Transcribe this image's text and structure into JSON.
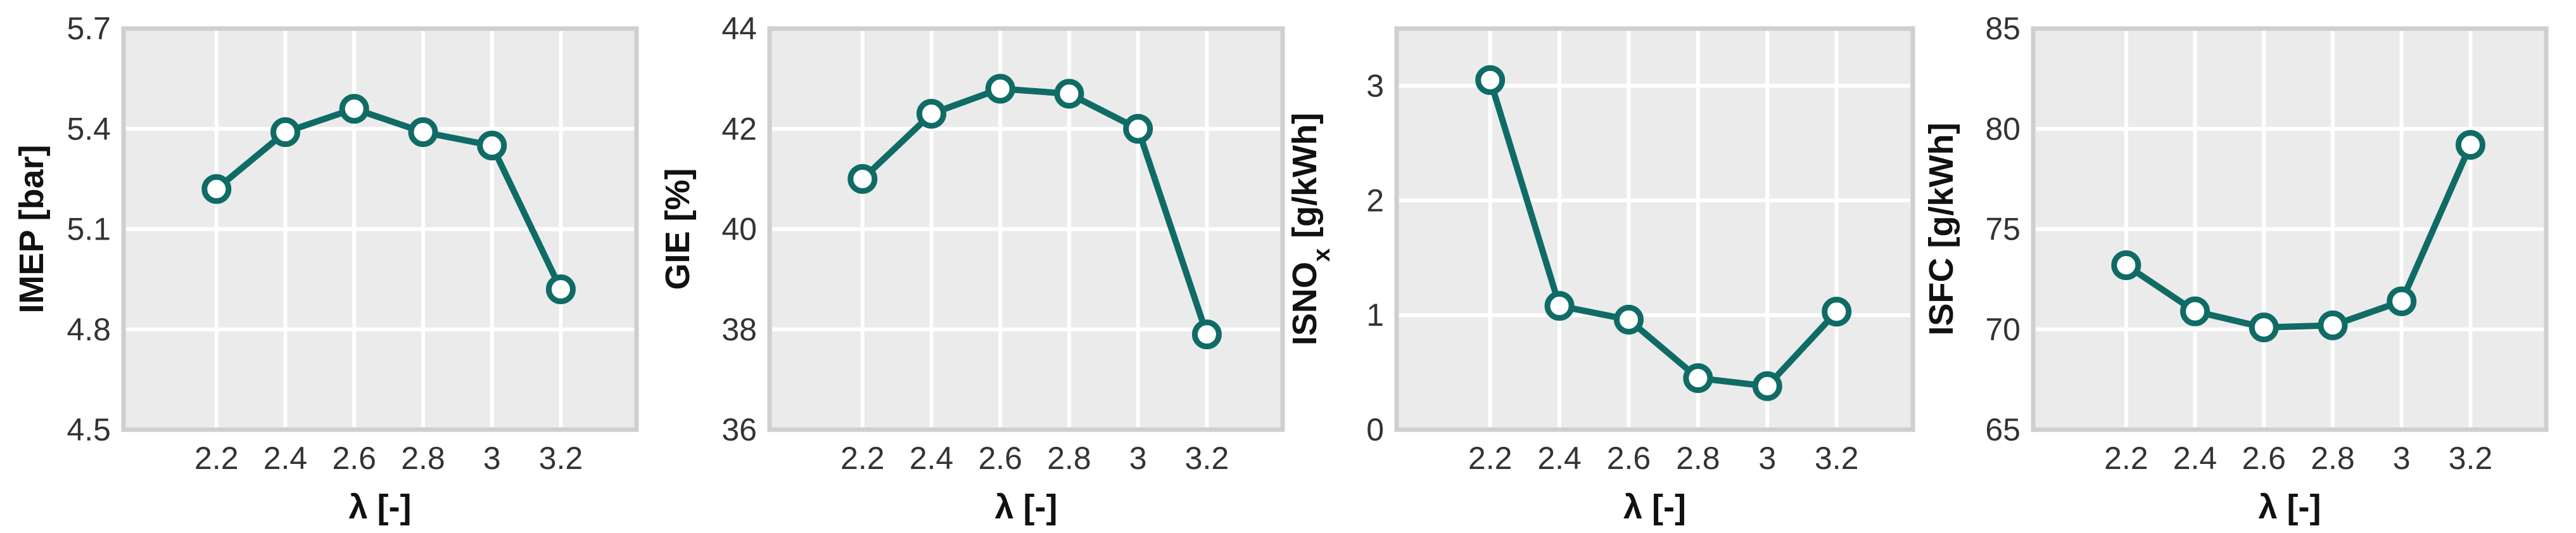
{
  "figure": {
    "background": "#ffffff",
    "panel_background": "#ebebeb",
    "grid_color": "#ffffff",
    "series_color": "#0f6b66"
  },
  "chart_data": [
    {
      "type": "line",
      "xlabel": "λ [-]",
      "ylabel": "IMEP [bar]",
      "x": [
        2.2,
        2.4,
        2.6,
        2.8,
        3.0,
        3.2
      ],
      "series": [
        {
          "values": [
            5.22,
            5.39,
            5.46,
            5.39,
            5.35,
            4.92
          ]
        }
      ],
      "xlim": [
        1.93,
        3.42
      ],
      "ylim": [
        4.5,
        5.7
      ],
      "xticks": [
        2.2,
        2.4,
        2.6,
        2.8,
        3.0,
        3.2
      ],
      "xtick_labels": [
        "2.2",
        "2.4",
        "2.6",
        "2.8",
        "3",
        "3.2"
      ],
      "yticks": [
        4.5,
        4.8,
        5.1,
        5.4,
        5.7
      ],
      "ytick_labels": [
        "4.5",
        "4.8",
        "5.1",
        "5.4",
        "5.7"
      ],
      "grid": true
    },
    {
      "type": "line",
      "xlabel": "λ [-]",
      "ylabel": "GIE [%]",
      "x": [
        2.2,
        2.4,
        2.6,
        2.8,
        3.0,
        3.2
      ],
      "series": [
        {
          "values": [
            41.0,
            42.3,
            42.8,
            42.7,
            42.0,
            37.9
          ]
        }
      ],
      "xlim": [
        1.93,
        3.42
      ],
      "ylim": [
        36,
        44
      ],
      "xticks": [
        2.2,
        2.4,
        2.6,
        2.8,
        3.0,
        3.2
      ],
      "xtick_labels": [
        "2.2",
        "2.4",
        "2.6",
        "2.8",
        "3",
        "3.2"
      ],
      "yticks": [
        36,
        38,
        40,
        42,
        44
      ],
      "ytick_labels": [
        "36",
        "38",
        "40",
        "42",
        "44"
      ],
      "grid": true
    },
    {
      "type": "line",
      "xlabel": "λ [-]",
      "ylabel": "ISNO",
      "ylabel_subscript": "x",
      "ylabel_unit": "[g/kWh]",
      "x": [
        2.2,
        2.4,
        2.6,
        2.8,
        3.0,
        3.2
      ],
      "series": [
        {
          "values": [
            3.05,
            1.08,
            0.96,
            0.45,
            0.38,
            1.03
          ]
        }
      ],
      "xlim": [
        1.93,
        3.42
      ],
      "ylim": [
        0,
        3.5
      ],
      "xticks": [
        2.2,
        2.4,
        2.6,
        2.8,
        3.0,
        3.2
      ],
      "xtick_labels": [
        "2.2",
        "2.4",
        "2.6",
        "2.8",
        "3",
        "3.2"
      ],
      "yticks": [
        0,
        1,
        2,
        3
      ],
      "ytick_labels": [
        "0",
        "1",
        "2",
        "3"
      ],
      "grid": true
    },
    {
      "type": "line",
      "xlabel": "λ [-]",
      "ylabel": "ISFC [g/kWh]",
      "x": [
        2.2,
        2.4,
        2.6,
        2.8,
        3.0,
        3.2
      ],
      "series": [
        {
          "values": [
            73.2,
            70.9,
            70.1,
            70.2,
            71.4,
            79.2
          ]
        }
      ],
      "xlim": [
        1.93,
        3.42
      ],
      "ylim": [
        65,
        85
      ],
      "xticks": [
        2.2,
        2.4,
        2.6,
        2.8,
        3.0,
        3.2
      ],
      "xtick_labels": [
        "2.2",
        "2.4",
        "2.6",
        "2.8",
        "3",
        "3.2"
      ],
      "yticks": [
        65,
        70,
        75,
        80,
        85
      ],
      "ytick_labels": [
        "65",
        "70",
        "75",
        "80",
        "85"
      ],
      "grid": true
    }
  ]
}
